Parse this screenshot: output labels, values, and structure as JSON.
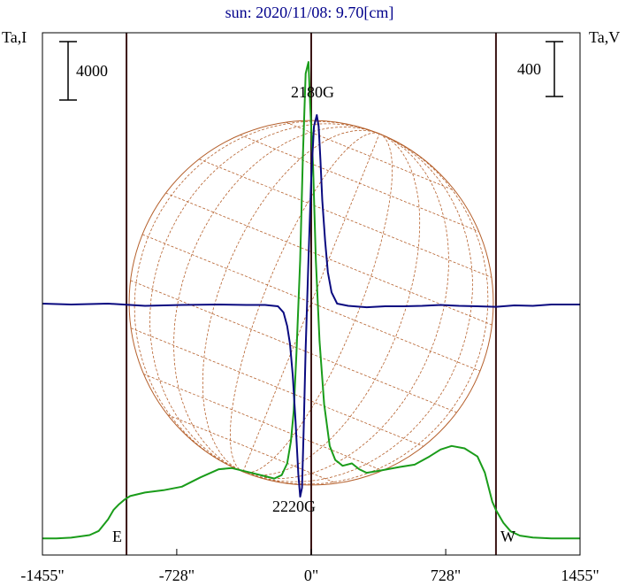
{
  "title": "sun: 2020/11/08: 9.70[cm]",
  "left_axis": {
    "label": "Ta,I",
    "scale_bar_value": "4000"
  },
  "right_axis": {
    "label": "Ta,V",
    "scale_bar_value": "400"
  },
  "annotations": {
    "top_peak": "2180G",
    "bottom_peak": "2220G",
    "east": "E",
    "west": "W"
  },
  "colors": {
    "background": "#ffffff",
    "frame": "#000000",
    "limb_lines": "#3a1414",
    "grid": "#b5602c",
    "intensity": "#1a9c1a",
    "polarization": "#0a0a80",
    "title": "#00008b"
  },
  "chart_data": {
    "type": "line",
    "title": "sun: 2020/11/08: 9.70[cm]",
    "xlabel": "",
    "x_ticks": [
      "-1455\"",
      "-728\"",
      "0\"",
      "728\"",
      "1455\""
    ],
    "x_tick_values": [
      -1455,
      -728,
      0,
      728,
      1455
    ],
    "xlim": [
      -1455,
      1455
    ],
    "solar_limbs": [
      -1000,
      1000
    ],
    "series": [
      {
        "name": "Ta,I",
        "axis": "left",
        "x": [
          -1455,
          -1380,
          -1300,
          -1200,
          -1150,
          -1100,
          -1070,
          -1040,
          -1010,
          -980,
          -900,
          -800,
          -700,
          -600,
          -500,
          -430,
          -350,
          -250,
          -200,
          -160,
          -130,
          -110,
          -95,
          -80,
          -60,
          -45,
          -30,
          -15,
          -5,
          10,
          25,
          45,
          70,
          100,
          130,
          170,
          220,
          260,
          300,
          380,
          480,
          560,
          640,
          700,
          760,
          830,
          900,
          940,
          980,
          1000,
          1040,
          1080,
          1130,
          1200,
          1300,
          1455
        ],
        "values": [
          30,
          32,
          60,
          170,
          350,
          850,
          1250,
          1500,
          1700,
          1850,
          2000,
          2100,
          2250,
          2650,
          3000,
          3050,
          2900,
          2700,
          2600,
          2750,
          3250,
          4200,
          5500,
          8000,
          12000,
          16500,
          20000,
          20500,
          18500,
          16000,
          12000,
          8500,
          5800,
          4000,
          3400,
          3150,
          3250,
          3000,
          2850,
          2950,
          3100,
          3200,
          3550,
          3850,
          4000,
          3900,
          3550,
          2850,
          1600,
          1250,
          700,
          330,
          150,
          70,
          30,
          30
        ]
      },
      {
        "name": "Ta,V",
        "axis": "right",
        "x": [
          -1455,
          -1300,
          -1100,
          -900,
          -700,
          -500,
          -350,
          -250,
          -180,
          -150,
          -130,
          -115,
          -100,
          -85,
          -70,
          -60,
          -50,
          -40,
          -30,
          -15,
          0,
          15,
          30,
          40,
          50,
          60,
          75,
          90,
          110,
          140,
          200,
          300,
          400,
          500,
          600,
          700,
          800,
          900,
          1000,
          1100,
          1200,
          1300,
          1455
        ],
        "values": [
          0,
          -2,
          0,
          -5,
          -3,
          -2,
          -3,
          -3,
          -6,
          -20,
          -50,
          -90,
          -160,
          -260,
          -380,
          -430,
          -410,
          -270,
          -100,
          100,
          280,
          395,
          420,
          395,
          320,
          230,
          140,
          70,
          25,
          0,
          -5,
          -8,
          -6,
          -6,
          -5,
          -3,
          -5,
          -6,
          -7,
          -4,
          -5,
          -2,
          -2
        ]
      }
    ]
  }
}
